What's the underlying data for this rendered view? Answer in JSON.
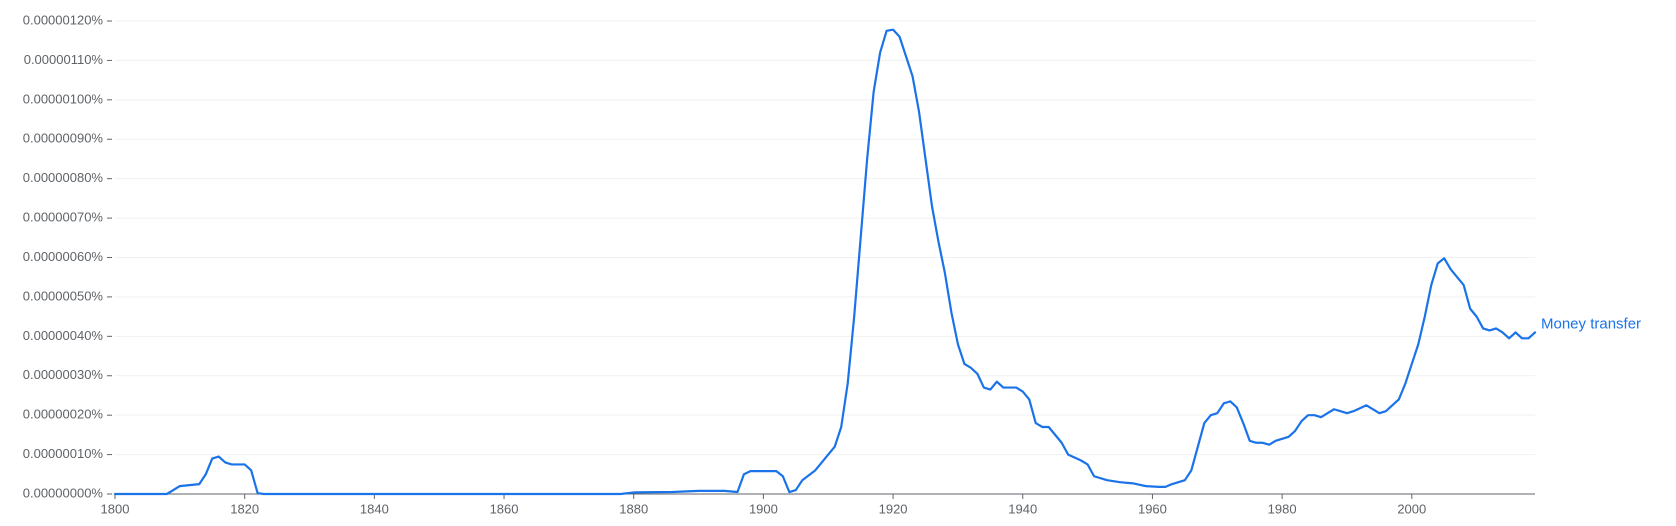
{
  "chart_data": {
    "type": "line",
    "x": [
      1800,
      1808,
      1810,
      1813,
      1814,
      1815,
      1816,
      1817,
      1818,
      1820,
      1821,
      1822,
      1823,
      1878,
      1880,
      1886,
      1890,
      1894,
      1896,
      1897,
      1898,
      1902,
      1903,
      1904,
      1905,
      1906,
      1908,
      1910,
      1911,
      1912,
      1913,
      1914,
      1915,
      1916,
      1917,
      1918,
      1919,
      1920,
      1921,
      1922,
      1923,
      1924,
      1925,
      1926,
      1927,
      1928,
      1929,
      1930,
      1931,
      1932,
      1933,
      1934,
      1935,
      1936,
      1937,
      1938,
      1939,
      1940,
      1941,
      1942,
      1943,
      1944,
      1945,
      1946,
      1947,
      1949,
      1950,
      1951,
      1953,
      1955,
      1957,
      1959,
      1961,
      1962,
      1963,
      1965,
      1966,
      1967,
      1968,
      1969,
      1970,
      1971,
      1972,
      1973,
      1974,
      1975,
      1976,
      1977,
      1978,
      1979,
      1980,
      1981,
      1982,
      1983,
      1984,
      1985,
      1986,
      1987,
      1988,
      1989,
      1990,
      1991,
      1993,
      1995,
      1996,
      1998,
      1999,
      2000,
      2001,
      2002,
      2003,
      2004,
      2005,
      2006,
      2007,
      2008,
      2009,
      2010,
      2011,
      2012,
      2013,
      2014,
      2015,
      2016,
      2017,
      2018,
      2019
    ],
    "series": [
      {
        "name": "Money transfer",
        "color": "#1a73e8",
        "values": [
          0,
          0,
          2e-08,
          2.5e-08,
          5e-08,
          9e-08,
          9.5e-08,
          8e-08,
          7.5e-08,
          7.5e-08,
          6e-08,
          2e-09,
          0,
          0,
          4e-09,
          5e-09,
          8e-09,
          8e-09,
          5e-09,
          5e-08,
          5.8e-08,
          5.8e-08,
          4.5e-08,
          5e-09,
          1e-08,
          3.5e-08,
          6e-08,
          1e-07,
          1.2e-07,
          1.7e-07,
          2.8e-07,
          4.5e-07,
          6.5e-07,
          8.5e-07,
          1.02e-06,
          1.12e-06,
          1.175e-06,
          1.178e-06,
          1.16e-06,
          1.11e-06,
          1.06e-06,
          9.7e-07,
          8.5e-07,
          7.3e-07,
          6.4e-07,
          5.6e-07,
          4.6e-07,
          3.8e-07,
          3.3e-07,
          3.2e-07,
          3.05e-07,
          2.7e-07,
          2.65e-07,
          2.85e-07,
          2.7e-07,
          2.7e-07,
          2.7e-07,
          2.6e-07,
          2.4e-07,
          1.8e-07,
          1.7e-07,
          1.7e-07,
          1.5e-07,
          1.3e-07,
          1e-07,
          8.5e-08,
          7.5e-08,
          4.5e-08,
          3.5e-08,
          3e-08,
          2.7e-08,
          2e-08,
          1.8e-08,
          1.8e-08,
          2.5e-08,
          3.5e-08,
          6e-08,
          1.2e-07,
          1.8e-07,
          2e-07,
          2.05e-07,
          2.3e-07,
          2.35e-07,
          2.2e-07,
          1.8e-07,
          1.35e-07,
          1.3e-07,
          1.3e-07,
          1.25e-07,
          1.35e-07,
          1.4e-07,
          1.45e-07,
          1.6e-07,
          1.85e-07,
          2e-07,
          2e-07,
          1.95e-07,
          2.05e-07,
          2.15e-07,
          2.1e-07,
          2.05e-07,
          2.1e-07,
          2.25e-07,
          2.05e-07,
          2.1e-07,
          2.4e-07,
          2.8e-07,
          3.3e-07,
          3.8e-07,
          4.5e-07,
          5.3e-07,
          5.85e-07,
          5.98e-07,
          5.7e-07,
          5.5e-07,
          5.3e-07,
          4.7e-07,
          4.5e-07,
          4.2e-07,
          4.15e-07,
          4.2e-07,
          4.1e-07,
          3.95e-07,
          4.1e-07,
          3.95e-07,
          3.95e-07,
          4.1e-07
        ]
      }
    ],
    "xlim": [
      1800,
      2019
    ],
    "xticks": [
      1800,
      1820,
      1840,
      1860,
      1880,
      1900,
      1920,
      1940,
      1960,
      1980,
      2000
    ],
    "ylim": [
      0,
      1.2e-06
    ],
    "yticks": [
      {
        "value": 0,
        "label": "0.00000000%"
      },
      {
        "value": 1e-07,
        "label": "0.00000010%"
      },
      {
        "value": 2e-07,
        "label": "0.00000020%"
      },
      {
        "value": 3e-07,
        "label": "0.00000030%"
      },
      {
        "value": 4e-07,
        "label": "0.00000040%"
      },
      {
        "value": 5e-07,
        "label": "0.00000050%"
      },
      {
        "value": 6e-07,
        "label": "0.00000060%"
      },
      {
        "value": 7e-07,
        "label": "0.00000070%"
      },
      {
        "value": 8e-07,
        "label": "0.00000080%"
      },
      {
        "value": 9e-07,
        "label": "0.00000090%"
      },
      {
        "value": 1e-06,
        "label": "0.00000100%"
      },
      {
        "value": 1.1e-06,
        "label": "0.00000110%"
      },
      {
        "value": 1.2e-06,
        "label": "0.00000120%"
      }
    ],
    "grid": true
  }
}
